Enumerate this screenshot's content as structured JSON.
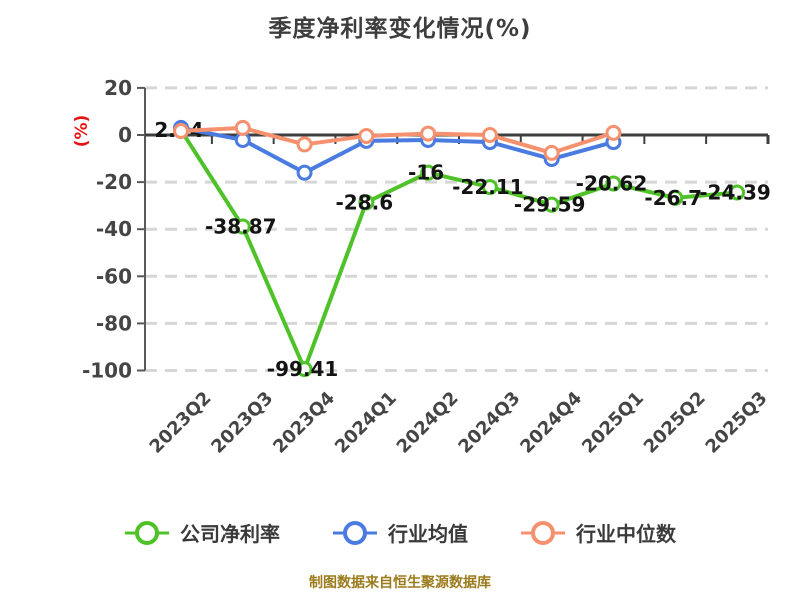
{
  "caption": "制图数据来自恒生聚源数据库",
  "chart_data": {
    "type": "line",
    "title": "季度净利率变化情况(%)",
    "y_unit": "(%)",
    "categories": [
      "2023Q2",
      "2023Q3",
      "2023Q4",
      "2024Q1",
      "2024Q2",
      "2024Q3",
      "2024Q4",
      "2025Q1",
      "2025Q2",
      "2025Q3"
    ],
    "series": [
      {
        "name": "公司净利率",
        "color": "#4ec228",
        "values": [
          2.04,
          -38.87,
          -99.41,
          -28.6,
          -16,
          -22.11,
          -29.59,
          -20.62,
          -26.7,
          -24.39
        ],
        "show_labels": true
      },
      {
        "name": "行业均值",
        "color": "#4a7be0",
        "values": [
          3,
          -2.1,
          -16,
          -2.5,
          -2.1,
          -3,
          -10.2,
          -3
        ],
        "show_labels": false
      },
      {
        "name": "行业中位数",
        "color": "#f5916e",
        "values": [
          1.7,
          3,
          -4,
          -0.4,
          0.6,
          0,
          -7.6,
          0.9
        ],
        "show_labels": false
      }
    ],
    "y_ticks": [
      20,
      0,
      -20,
      -40,
      -60,
      -80,
      -100
    ],
    "ylim": [
      -100,
      20
    ],
    "grid": "dashed horizontal",
    "legend_position": "bottom"
  },
  "colors": {
    "grid": "#d6d6d6",
    "x_axis": "#3f3f3f",
    "y_spine": "#595959",
    "tick_label": "#454545",
    "data_label": "#141414",
    "unit_label": "#e61414",
    "caption": "#9c7b1c"
  }
}
